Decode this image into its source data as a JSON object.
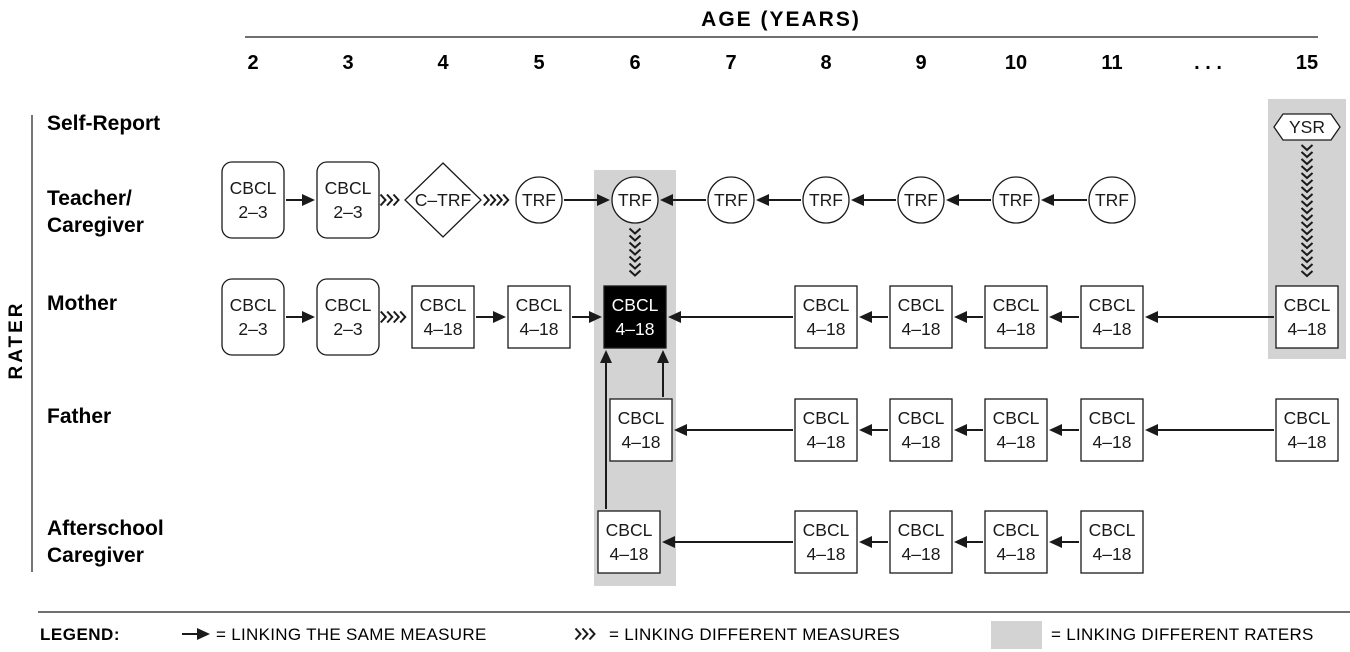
{
  "title": "AGE (YEARS)",
  "ages": [
    "2",
    "3",
    "4",
    "5",
    "6",
    "7",
    "8",
    "9",
    "10",
    "11",
    ". . .",
    "15"
  ],
  "axis_label": "RATER",
  "raters": [
    {
      "key": "self",
      "lines": [
        "Self-Report"
      ]
    },
    {
      "key": "teacher",
      "lines": [
        "Teacher/",
        "Caregiver"
      ]
    },
    {
      "key": "mother",
      "lines": [
        "Mother"
      ]
    },
    {
      "key": "father",
      "lines": [
        "Father"
      ]
    },
    {
      "key": "afterschool",
      "lines": [
        "Afterschool",
        "Caregiver"
      ]
    }
  ],
  "nodes": [
    {
      "id": "t2",
      "shape": "rounded",
      "lines": [
        "CBCL",
        "2–3"
      ]
    },
    {
      "id": "t3",
      "shape": "rounded",
      "lines": [
        "CBCL",
        "2–3"
      ]
    },
    {
      "id": "t4",
      "shape": "diamond",
      "lines": [
        "C–TRF"
      ]
    },
    {
      "id": "t5",
      "shape": "circle",
      "lines": [
        "TRF"
      ]
    },
    {
      "id": "t6",
      "shape": "circle",
      "lines": [
        "TRF"
      ]
    },
    {
      "id": "t7",
      "shape": "circle",
      "lines": [
        "TRF"
      ]
    },
    {
      "id": "t8",
      "shape": "circle",
      "lines": [
        "TRF"
      ]
    },
    {
      "id": "t9",
      "shape": "circle",
      "lines": [
        "TRF"
      ]
    },
    {
      "id": "t10",
      "shape": "circle",
      "lines": [
        "TRF"
      ]
    },
    {
      "id": "t11",
      "shape": "circle",
      "lines": [
        "TRF"
      ]
    },
    {
      "id": "s15",
      "shape": "hexagon",
      "lines": [
        "YSR"
      ]
    },
    {
      "id": "m2",
      "shape": "rounded",
      "lines": [
        "CBCL",
        "2–3"
      ]
    },
    {
      "id": "m3",
      "shape": "rounded",
      "lines": [
        "CBCL",
        "2–3"
      ]
    },
    {
      "id": "m4",
      "shape": "square",
      "lines": [
        "CBCL",
        "4–18"
      ]
    },
    {
      "id": "m5",
      "shape": "square",
      "lines": [
        "CBCL",
        "4–18"
      ]
    },
    {
      "id": "m6",
      "shape": "square-filled",
      "lines": [
        "CBCL",
        "4–18"
      ]
    },
    {
      "id": "m8",
      "shape": "square",
      "lines": [
        "CBCL",
        "4–18"
      ]
    },
    {
      "id": "m9",
      "shape": "square",
      "lines": [
        "CBCL",
        "4–18"
      ]
    },
    {
      "id": "m10",
      "shape": "square",
      "lines": [
        "CBCL",
        "4–18"
      ]
    },
    {
      "id": "m11",
      "shape": "square",
      "lines": [
        "CBCL",
        "4–18"
      ]
    },
    {
      "id": "m15",
      "shape": "square",
      "lines": [
        "CBCL",
        "4–18"
      ]
    },
    {
      "id": "f6",
      "shape": "square",
      "lines": [
        "CBCL",
        "4–18"
      ]
    },
    {
      "id": "f8",
      "shape": "square",
      "lines": [
        "CBCL",
        "4–18"
      ]
    },
    {
      "id": "f9",
      "shape": "square",
      "lines": [
        "CBCL",
        "4–18"
      ]
    },
    {
      "id": "f10",
      "shape": "square",
      "lines": [
        "CBCL",
        "4–18"
      ]
    },
    {
      "id": "f11",
      "shape": "square",
      "lines": [
        "CBCL",
        "4–18"
      ]
    },
    {
      "id": "f15",
      "shape": "square",
      "lines": [
        "CBCL",
        "4–18"
      ]
    },
    {
      "id": "a6",
      "shape": "square",
      "lines": [
        "CBCL",
        "4–18"
      ]
    },
    {
      "id": "a8",
      "shape": "square",
      "lines": [
        "CBCL",
        "4–18"
      ]
    },
    {
      "id": "a9",
      "shape": "square",
      "lines": [
        "CBCL",
        "4–18"
      ]
    },
    {
      "id": "a10",
      "shape": "square",
      "lines": [
        "CBCL",
        "4–18"
      ]
    },
    {
      "id": "a11",
      "shape": "square",
      "lines": [
        "CBCL",
        "4–18"
      ]
    }
  ],
  "links": [
    {
      "from": "t2",
      "to": "t3",
      "kind": "same"
    },
    {
      "from": "t3",
      "to": "t4",
      "kind": "different"
    },
    {
      "from": "t4",
      "to": "t5",
      "kind": "different"
    },
    {
      "from": "t5",
      "to": "t6",
      "kind": "same"
    },
    {
      "from": "t7",
      "to": "t6",
      "kind": "same"
    },
    {
      "from": "t8",
      "to": "t7",
      "kind": "same"
    },
    {
      "from": "t9",
      "to": "t8",
      "kind": "same"
    },
    {
      "from": "t10",
      "to": "t9",
      "kind": "same"
    },
    {
      "from": "t11",
      "to": "t10",
      "kind": "same"
    },
    {
      "from": "t6",
      "to": "m6",
      "kind": "different"
    },
    {
      "from": "s15",
      "to": "m15",
      "kind": "different"
    },
    {
      "from": "m2",
      "to": "m3",
      "kind": "same"
    },
    {
      "from": "m3",
      "to": "m4",
      "kind": "different"
    },
    {
      "from": "m4",
      "to": "m5",
      "kind": "same"
    },
    {
      "from": "m5",
      "to": "m6",
      "kind": "same"
    },
    {
      "from": "m8",
      "to": "m6",
      "kind": "same"
    },
    {
      "from": "m9",
      "to": "m8",
      "kind": "same"
    },
    {
      "from": "m10",
      "to": "m9",
      "kind": "same"
    },
    {
      "from": "m11",
      "to": "m10",
      "kind": "same"
    },
    {
      "from": "m15",
      "to": "m11",
      "kind": "same"
    },
    {
      "from": "f6",
      "to": "m6",
      "kind": "same"
    },
    {
      "from": "a6",
      "to": "m6",
      "kind": "same"
    },
    {
      "from": "f8",
      "to": "f6",
      "kind": "same"
    },
    {
      "from": "f9",
      "to": "f8",
      "kind": "same"
    },
    {
      "from": "f10",
      "to": "f9",
      "kind": "same"
    },
    {
      "from": "f11",
      "to": "f10",
      "kind": "same"
    },
    {
      "from": "f15",
      "to": "f11",
      "kind": "same"
    },
    {
      "from": "a8",
      "to": "a6",
      "kind": "same"
    },
    {
      "from": "a9",
      "to": "a8",
      "kind": "same"
    },
    {
      "from": "a10",
      "to": "a9",
      "kind": "same"
    },
    {
      "from": "a11",
      "to": "a10",
      "kind": "same"
    }
  ],
  "legend": {
    "title": "LEGEND:",
    "same": "= LINKING THE SAME MEASURE",
    "different": "= LINKING DIFFERENT MEASURES",
    "raters": "= LINKING DIFFERENT RATERS"
  },
  "colors": {
    "ink": "#1a1a1a",
    "shade": "#d3d3d3",
    "filled_box": "#000000",
    "filled_text": "#ffffff"
  }
}
